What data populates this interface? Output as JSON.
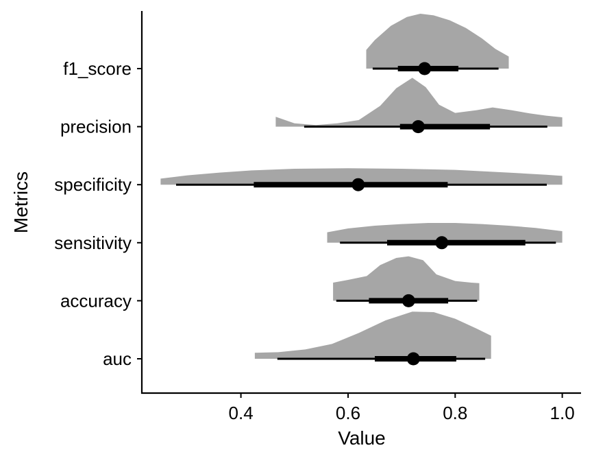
{
  "chart_data": {
    "type": "halfeye",
    "xlabel": "Value",
    "ylabel": "Metrics",
    "xlim": [
      0.215,
      1.035
    ],
    "x_ticks": [
      {
        "value": 0.4,
        "label": "0.4"
      },
      {
        "value": 0.6,
        "label": "0.6"
      },
      {
        "value": 0.8,
        "label": "0.8"
      },
      {
        "value": 1.0,
        "label": "1.0"
      }
    ],
    "density_color": "#a6a6a6",
    "interval_color": "#000000",
    "categories": [
      "f1_score",
      "precision",
      "specificity",
      "sensitivity",
      "accuracy",
      "auc"
    ],
    "series": [
      {
        "name": "f1_score",
        "point": 0.743,
        "interval_66": [
          0.693,
          0.806
        ],
        "interval_95": [
          0.646,
          0.881
        ],
        "density": [
          [
            0.634,
            0.34
          ],
          [
            0.65,
            0.52
          ],
          [
            0.68,
            0.78
          ],
          [
            0.71,
            0.94
          ],
          [
            0.735,
            1.0
          ],
          [
            0.76,
            0.97
          ],
          [
            0.79,
            0.88
          ],
          [
            0.82,
            0.74
          ],
          [
            0.85,
            0.55
          ],
          [
            0.875,
            0.36
          ],
          [
            0.9,
            0.22
          ]
        ]
      },
      {
        "name": "precision",
        "point": 0.731,
        "interval_66": [
          0.697,
          0.865
        ],
        "interval_95": [
          0.518,
          0.972
        ],
        "density": [
          [
            0.465,
            0.18
          ],
          [
            0.5,
            0.06
          ],
          [
            0.54,
            0.03
          ],
          [
            0.58,
            0.06
          ],
          [
            0.62,
            0.12
          ],
          [
            0.66,
            0.38
          ],
          [
            0.69,
            0.7
          ],
          [
            0.72,
            0.89
          ],
          [
            0.745,
            0.72
          ],
          [
            0.77,
            0.4
          ],
          [
            0.8,
            0.25
          ],
          [
            0.84,
            0.3
          ],
          [
            0.87,
            0.35
          ],
          [
            0.905,
            0.3
          ],
          [
            0.94,
            0.24
          ],
          [
            0.97,
            0.2
          ],
          [
            1.0,
            0.17
          ]
        ]
      },
      {
        "name": "specificity",
        "point": 0.619,
        "interval_66": [
          0.424,
          0.786
        ],
        "interval_95": [
          0.279,
          0.971
        ],
        "density": [
          [
            0.25,
            0.11
          ],
          [
            0.3,
            0.17
          ],
          [
            0.36,
            0.22
          ],
          [
            0.42,
            0.26
          ],
          [
            0.5,
            0.29
          ],
          [
            0.6,
            0.3
          ],
          [
            0.7,
            0.29
          ],
          [
            0.8,
            0.27
          ],
          [
            0.9,
            0.22
          ],
          [
            0.97,
            0.18
          ],
          [
            1.0,
            0.16
          ]
        ]
      },
      {
        "name": "sensitivity",
        "point": 0.775,
        "interval_66": [
          0.673,
          0.931
        ],
        "interval_95": [
          0.585,
          0.988
        ],
        "density": [
          [
            0.561,
            0.19
          ],
          [
            0.6,
            0.26
          ],
          [
            0.65,
            0.31
          ],
          [
            0.7,
            0.34
          ],
          [
            0.75,
            0.36
          ],
          [
            0.8,
            0.36
          ],
          [
            0.85,
            0.34
          ],
          [
            0.9,
            0.31
          ],
          [
            0.95,
            0.27
          ],
          [
            1.0,
            0.21
          ]
        ]
      },
      {
        "name": "accuracy",
        "point": 0.713,
        "interval_66": [
          0.639,
          0.787
        ],
        "interval_95": [
          0.578,
          0.841
        ],
        "density": [
          [
            0.572,
            0.33
          ],
          [
            0.6,
            0.38
          ],
          [
            0.635,
            0.45
          ],
          [
            0.66,
            0.65
          ],
          [
            0.69,
            0.78
          ],
          [
            0.713,
            0.81
          ],
          [
            0.74,
            0.74
          ],
          [
            0.765,
            0.48
          ],
          [
            0.8,
            0.36
          ],
          [
            0.83,
            0.33
          ],
          [
            0.845,
            0.32
          ]
        ]
      },
      {
        "name": "auc",
        "point": 0.722,
        "interval_66": [
          0.65,
          0.802
        ],
        "interval_95": [
          0.468,
          0.856
        ],
        "density": [
          [
            0.426,
            0.11
          ],
          [
            0.47,
            0.12
          ],
          [
            0.52,
            0.17
          ],
          [
            0.57,
            0.27
          ],
          [
            0.62,
            0.47
          ],
          [
            0.67,
            0.7
          ],
          [
            0.72,
            0.86
          ],
          [
            0.76,
            0.85
          ],
          [
            0.8,
            0.73
          ],
          [
            0.84,
            0.55
          ],
          [
            0.867,
            0.42
          ]
        ]
      }
    ]
  }
}
